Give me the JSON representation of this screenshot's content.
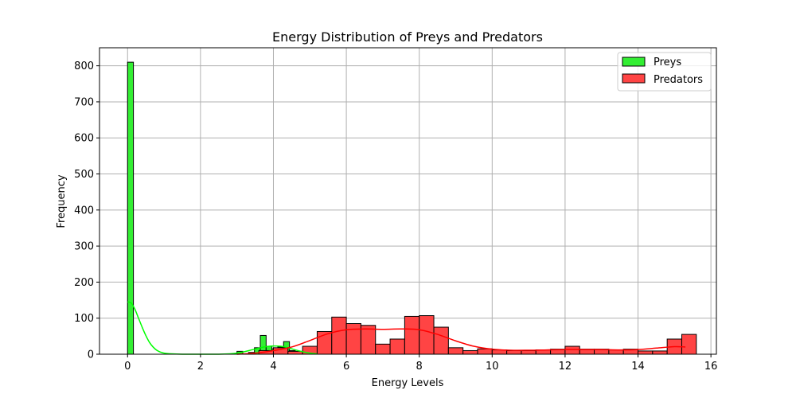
{
  "chart_data": {
    "type": "histogram",
    "title": "Energy Distribution of Preys and Predators",
    "xlabel": "Energy Levels",
    "ylabel": "Frequency",
    "xlim": [
      -0.77,
      16.15
    ],
    "ylim": [
      0,
      850
    ],
    "xticks": [
      0,
      2,
      4,
      6,
      8,
      10,
      12,
      14,
      16
    ],
    "yticks": [
      0,
      100,
      200,
      300,
      400,
      500,
      600,
      700,
      800
    ],
    "grid": true,
    "legend_position": "top-right",
    "colors": {
      "preys_fill": "#33ee33",
      "predators_fill": "#ff4444",
      "preys_kde": "#00ff00",
      "predators_kde": "#ff0000",
      "edge": "#000000",
      "grid": "#b0b0b0"
    },
    "series": [
      {
        "name": "Preys",
        "bin_width": 0.16,
        "bins": [
          {
            "x0": 0.0,
            "x1": 0.16,
            "count": 810
          },
          {
            "x0": 3.0,
            "x1": 3.16,
            "count": 8
          },
          {
            "x0": 3.32,
            "x1": 3.48,
            "count": 5
          },
          {
            "x0": 3.48,
            "x1": 3.64,
            "count": 18
          },
          {
            "x0": 3.64,
            "x1": 3.8,
            "count": 52
          },
          {
            "x0": 3.8,
            "x1": 3.96,
            "count": 22
          },
          {
            "x0": 3.96,
            "x1": 4.12,
            "count": 15
          },
          {
            "x0": 4.12,
            "x1": 4.28,
            "count": 20
          },
          {
            "x0": 4.28,
            "x1": 4.44,
            "count": 35
          },
          {
            "x0": 4.44,
            "x1": 4.6,
            "count": 10
          },
          {
            "x0": 4.6,
            "x1": 4.76,
            "count": 5
          },
          {
            "x0": 4.76,
            "x1": 4.92,
            "count": 3
          }
        ],
        "kde": [
          [
            0.0,
            145
          ],
          [
            0.1,
            142
          ],
          [
            0.2,
            125
          ],
          [
            0.3,
            100
          ],
          [
            0.4,
            75
          ],
          [
            0.5,
            52
          ],
          [
            0.6,
            33
          ],
          [
            0.7,
            20
          ],
          [
            0.8,
            11
          ],
          [
            0.9,
            6
          ],
          [
            1.0,
            3
          ],
          [
            1.2,
            1
          ],
          [
            1.5,
            0
          ],
          [
            2.0,
            0
          ],
          [
            2.5,
            0
          ],
          [
            2.8,
            1
          ],
          [
            3.0,
            3
          ],
          [
            3.2,
            7
          ],
          [
            3.4,
            12
          ],
          [
            3.6,
            17
          ],
          [
            3.8,
            21
          ],
          [
            4.0,
            23
          ],
          [
            4.2,
            22
          ],
          [
            4.4,
            18
          ],
          [
            4.6,
            12
          ],
          [
            4.8,
            7
          ],
          [
            5.0,
            3
          ],
          [
            5.2,
            1
          ]
        ]
      },
      {
        "name": "Predators",
        "bin_width": 0.4,
        "bins": [
          {
            "x0": 3.6,
            "x1": 4.0,
            "count": 10
          },
          {
            "x0": 4.0,
            "x1": 4.4,
            "count": 18
          },
          {
            "x0": 4.4,
            "x1": 4.8,
            "count": 8
          },
          {
            "x0": 4.8,
            "x1": 5.2,
            "count": 22
          },
          {
            "x0": 5.2,
            "x1": 5.6,
            "count": 63
          },
          {
            "x0": 5.6,
            "x1": 6.0,
            "count": 103
          },
          {
            "x0": 6.0,
            "x1": 6.4,
            "count": 85
          },
          {
            "x0": 6.4,
            "x1": 6.8,
            "count": 80
          },
          {
            "x0": 6.8,
            "x1": 7.2,
            "count": 28
          },
          {
            "x0": 7.2,
            "x1": 7.6,
            "count": 42
          },
          {
            "x0": 7.6,
            "x1": 8.0,
            "count": 105
          },
          {
            "x0": 8.0,
            "x1": 8.4,
            "count": 107
          },
          {
            "x0": 8.4,
            "x1": 8.8,
            "count": 75
          },
          {
            "x0": 8.8,
            "x1": 9.2,
            "count": 18
          },
          {
            "x0": 9.2,
            "x1": 9.6,
            "count": 10
          },
          {
            "x0": 9.6,
            "x1": 10.0,
            "count": 15
          },
          {
            "x0": 10.0,
            "x1": 10.4,
            "count": 12
          },
          {
            "x0": 10.4,
            "x1": 10.8,
            "count": 10
          },
          {
            "x0": 10.8,
            "x1": 11.2,
            "count": 10
          },
          {
            "x0": 11.2,
            "x1": 11.6,
            "count": 12
          },
          {
            "x0": 11.6,
            "x1": 12.0,
            "count": 14
          },
          {
            "x0": 12.0,
            "x1": 12.4,
            "count": 22
          },
          {
            "x0": 12.4,
            "x1": 12.8,
            "count": 14
          },
          {
            "x0": 12.8,
            "x1": 13.2,
            "count": 14
          },
          {
            "x0": 13.2,
            "x1": 13.6,
            "count": 12
          },
          {
            "x0": 13.6,
            "x1": 14.0,
            "count": 14
          },
          {
            "x0": 14.0,
            "x1": 14.4,
            "count": 9
          },
          {
            "x0": 14.4,
            "x1": 14.8,
            "count": 9
          },
          {
            "x0": 14.8,
            "x1": 15.2,
            "count": 42
          },
          {
            "x0": 15.2,
            "x1": 15.6,
            "count": 55
          }
        ],
        "kde": [
          [
            3.0,
            0
          ],
          [
            3.5,
            3
          ],
          [
            4.0,
            10
          ],
          [
            4.5,
            20
          ],
          [
            5.0,
            38
          ],
          [
            5.5,
            57
          ],
          [
            6.0,
            68
          ],
          [
            6.5,
            70
          ],
          [
            7.0,
            69
          ],
          [
            7.5,
            70
          ],
          [
            8.0,
            68
          ],
          [
            8.5,
            55
          ],
          [
            9.0,
            37
          ],
          [
            9.5,
            22
          ],
          [
            10.0,
            14
          ],
          [
            10.5,
            11
          ],
          [
            11.0,
            11
          ],
          [
            11.5,
            12
          ],
          [
            12.0,
            13
          ],
          [
            12.5,
            13
          ],
          [
            13.0,
            13
          ],
          [
            13.5,
            12
          ],
          [
            14.0,
            13
          ],
          [
            14.5,
            17
          ],
          [
            15.0,
            21
          ],
          [
            15.3,
            20
          ]
        ]
      }
    ]
  }
}
